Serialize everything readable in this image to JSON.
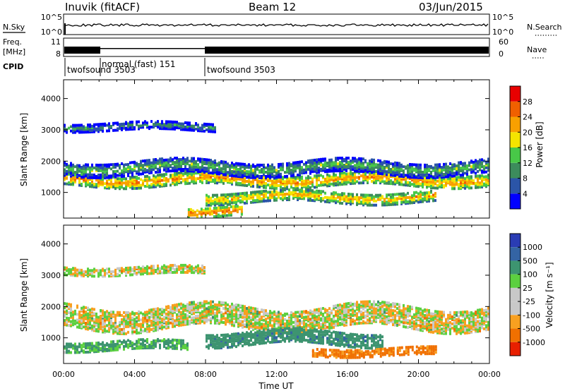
{
  "header": {
    "radar": "Inuvik (fitACF)",
    "beam": "Beam 12",
    "date": "03/Jun/2015"
  },
  "top_panels": {
    "nsky": {
      "label": "N.Sky",
      "y_ticks": [
        "10^5",
        "10^0"
      ],
      "right_label": "N.Search",
      "right_ticks": [
        "10^5",
        "10^0"
      ]
    },
    "freq": {
      "label": "Freq.",
      "unit": "[MHz]",
      "y_ticks": [
        "11",
        "8"
      ],
      "right_label": "Nave",
      "right_ticks": [
        "60",
        "0"
      ]
    },
    "cpid": {
      "label": "CPID",
      "segments": [
        {
          "label": "twofsound 3503",
          "start_hour": 0,
          "end_hour": 2
        },
        {
          "label": "normal (fast) 151",
          "start_hour": 2,
          "end_hour": 8
        },
        {
          "label": "twofsound 3503",
          "start_hour": 8,
          "end_hour": 24
        }
      ]
    }
  },
  "colors": {
    "power_scale": [
      "#0000ff",
      "#2b55a8",
      "#3c8c5c",
      "#48c848",
      "#f4e400",
      "#f8a000",
      "#f06000",
      "#e80000"
    ],
    "velocity_scale": [
      "#2a3cb4",
      "#3464a4",
      "#3d9470",
      "#5cd040",
      "#c8c8c8",
      "#c8c8c8",
      "#f8a020",
      "#f07000",
      "#e82000"
    ],
    "ground_scatter": "#c8c8c8"
  },
  "chart_data": [
    {
      "type": "heatmap",
      "title": "",
      "xlabel": "",
      "ylabel": "Slant Range [km]",
      "x_ticks": [
        "00:00",
        "04:00",
        "08:00",
        "12:00",
        "16:00",
        "20:00",
        "00:00"
      ],
      "xlim_hours": [
        0,
        24
      ],
      "y_ticks": [
        1000,
        2000,
        3000,
        4000
      ],
      "ylim": [
        180,
        4600
      ],
      "colorbar": {
        "label": "Power [dB]",
        "ticks": [
          4,
          8,
          12,
          16,
          20,
          24,
          28
        ],
        "range": [
          0,
          32
        ]
      },
      "bands": [
        {
          "center_km": 1450,
          "width_km": 380,
          "start_hour": 0,
          "end_hour": 24,
          "value": 24
        },
        {
          "center_km": 1850,
          "width_km": 450,
          "start_hour": 0,
          "end_hour": 24,
          "value": 14
        },
        {
          "center_km": 3150,
          "width_km": 250,
          "start_hour": 0,
          "end_hour": 8.5,
          "value": 12
        },
        {
          "center_km": 900,
          "width_km": 350,
          "start_hour": 8,
          "end_hour": 21,
          "value": 22
        },
        {
          "center_km": 450,
          "width_km": 300,
          "start_hour": 7,
          "end_hour": 10,
          "value": 26
        }
      ]
    },
    {
      "type": "heatmap",
      "title": "",
      "xlabel": "Time UT",
      "ylabel": "Slant Range [km]",
      "x_ticks": [
        "00:00",
        "04:00",
        "08:00",
        "12:00",
        "16:00",
        "20:00",
        "00:00"
      ],
      "xlim_hours": [
        0,
        24
      ],
      "y_ticks": [
        1000,
        2000,
        3000,
        4000
      ],
      "ylim": [
        180,
        4600
      ],
      "colorbar": {
        "label": "Velocity [m s⁻¹]",
        "ticks": [
          "1000",
          "500",
          "100",
          "25",
          "-25",
          "-100",
          "-500",
          "-1000"
        ]
      },
      "bands": [
        {
          "center_km": 1700,
          "width_km": 700,
          "start_hour": 0,
          "end_hour": 24,
          "value": 0
        },
        {
          "center_km": 3200,
          "width_km": 250,
          "start_hour": 0,
          "end_hour": 8,
          "value": 0
        },
        {
          "center_km": 800,
          "width_km": 300,
          "start_hour": 0,
          "end_hour": 7,
          "value": 150
        },
        {
          "center_km": 1050,
          "width_km": 450,
          "start_hour": 8,
          "end_hour": 18,
          "value": 300
        },
        {
          "center_km": 600,
          "width_km": 250,
          "start_hour": 14,
          "end_hour": 21,
          "value": -200
        }
      ]
    }
  ]
}
